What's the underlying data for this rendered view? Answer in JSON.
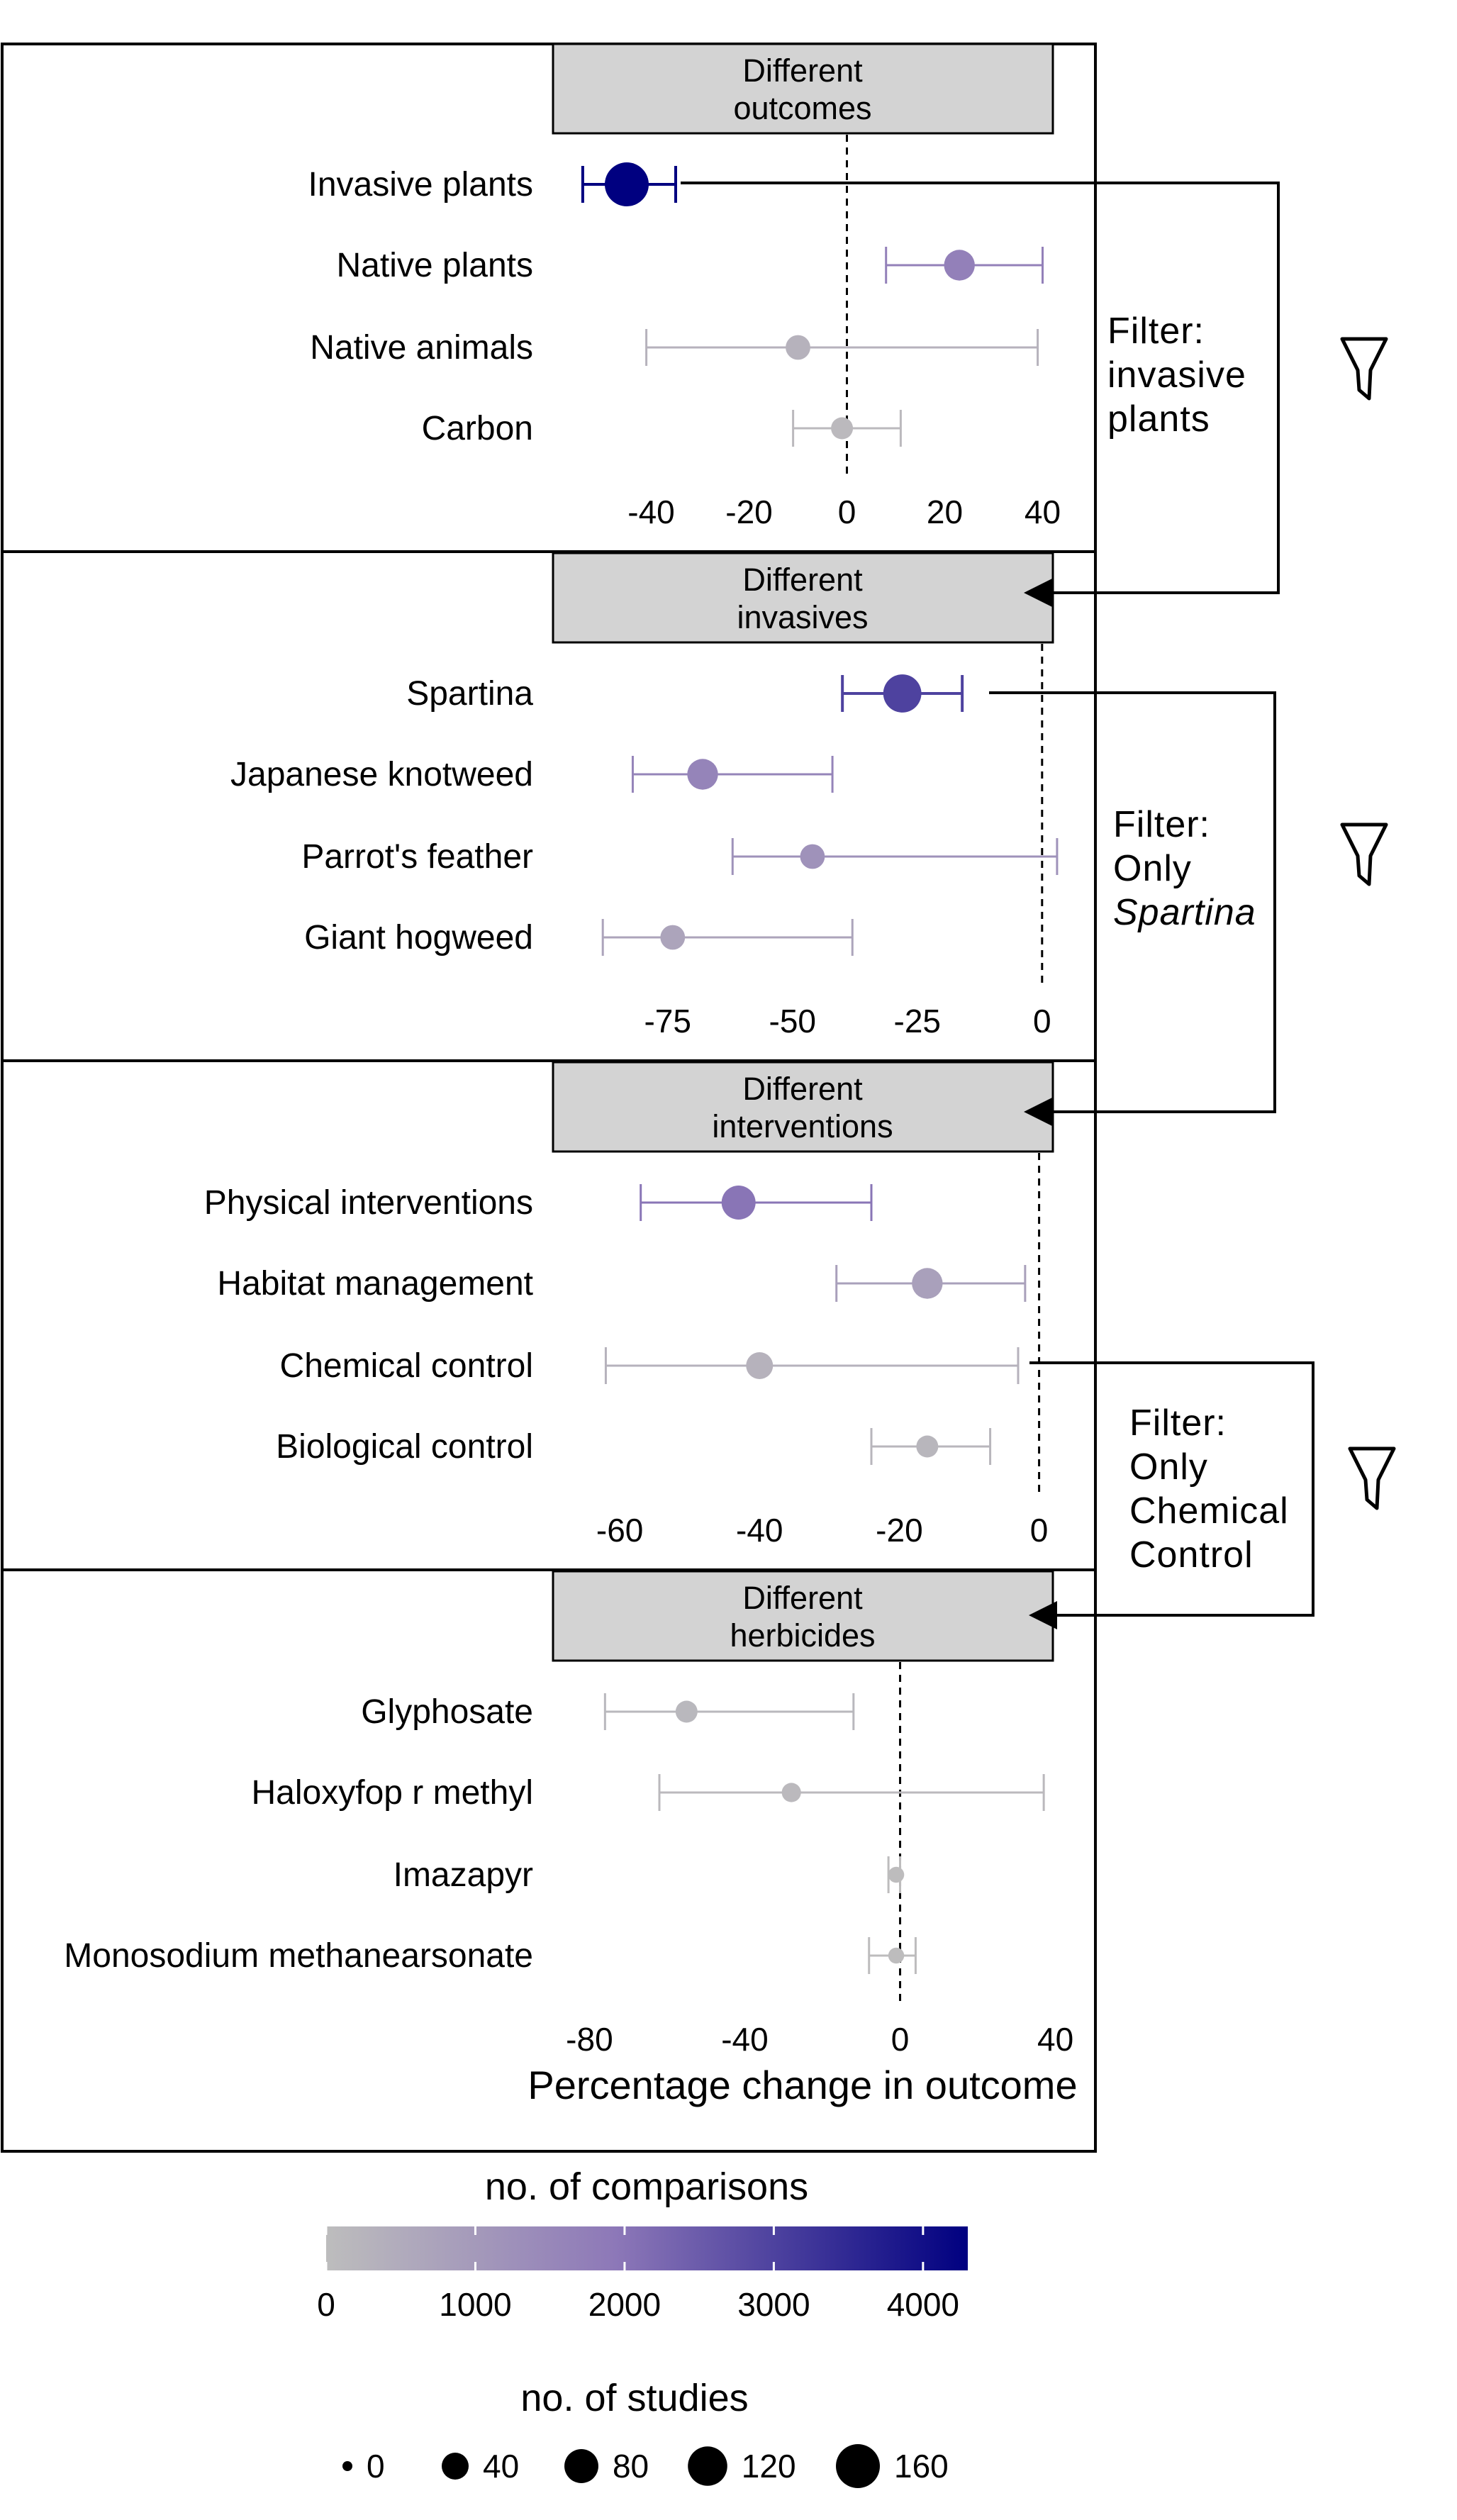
{
  "chart_data": [
    {
      "type": "scatter",
      "strip_title": [
        "Different",
        "outcomes"
      ],
      "categories": [
        "Invasive plants",
        "Native plants",
        "Native animals",
        "Carbon"
      ],
      "x_ticks": [
        "-40",
        "-20",
        "0",
        "20",
        "40"
      ],
      "tick_values": [
        -40,
        -20,
        0,
        20,
        40
      ],
      "xlim": [
        -55,
        45
      ],
      "estimate": [
        -45,
        23,
        -10,
        -1
      ],
      "ci_low": [
        -54,
        8,
        -41,
        -11
      ],
      "ci_high": [
        -35,
        40,
        39,
        11
      ],
      "comparisons": [
        4300,
        1700,
        300,
        100
      ],
      "studies": [
        160,
        60,
        30,
        20
      ]
    },
    {
      "type": "scatter",
      "strip_title": [
        "Different",
        "invasives"
      ],
      "categories": [
        "Spartina",
        "Japanese knotweed",
        "Parrot's feather",
        "Giant hogweed"
      ],
      "x_ticks": [
        "-75",
        "-50",
        "-25",
        "0"
      ],
      "tick_values": [
        -75,
        -50,
        -25,
        0
      ],
      "xlim": [
        -93,
        5
      ],
      "estimate": [
        -28,
        -68,
        -46,
        -74
      ],
      "ci_low": [
        -40,
        -82,
        -62,
        -88
      ],
      "ci_high": [
        -16,
        -42,
        3,
        -38
      ],
      "comparisons": [
        3000,
        1600,
        1200,
        700
      ],
      "studies": [
        110,
        60,
        30,
        30
      ]
    },
    {
      "type": "scatter",
      "strip_title": [
        "Different",
        "interventions"
      ],
      "categories": [
        "Physical interventions",
        "Habitat management",
        "Chemical control",
        "Biological control"
      ],
      "x_ticks": [
        "-60",
        "-40",
        "-20",
        "0"
      ],
      "tick_values": [
        -60,
        -40,
        -20,
        0
      ],
      "xlim": [
        -66,
        4
      ],
      "estimate": [
        -43,
        -16,
        -40,
        -16
      ],
      "ci_low": [
        -57,
        -29,
        -62,
        -24
      ],
      "ci_high": [
        -24,
        -2,
        -3,
        -7
      ],
      "comparisons": [
        2000,
        800,
        300,
        200
      ],
      "studies": [
        80,
        60,
        40,
        20
      ]
    },
    {
      "type": "scatter",
      "strip_title": [
        "Different",
        "herbicides"
      ],
      "categories": [
        "Glyphosate",
        "Haloxyfop r methyl",
        "Imazapyr",
        "Monosodium methanearsonate"
      ],
      "x_ticks": [
        "-80",
        "-40",
        "0",
        "40"
      ],
      "tick_values": [
        -80,
        -40,
        0,
        40
      ],
      "xlim": [
        -83,
        43
      ],
      "estimate": [
        -55,
        -28,
        -1,
        -1
      ],
      "ci_low": [
        -76,
        -62,
        -3,
        -8
      ],
      "ci_high": [
        -12,
        37,
        0,
        4
      ],
      "comparisons": [
        150,
        100,
        20,
        20
      ],
      "studies": [
        20,
        12,
        5,
        5
      ]
    }
  ],
  "x_axis_label": "Percentage change in outcome",
  "filters": [
    {
      "lines": [
        "Filter:",
        "invasive",
        "plants"
      ],
      "icon": "funnel-icon"
    },
    {
      "lines": [
        "Filter:",
        "Only",
        "Spartina"
      ],
      "italic_last": true,
      "icon": "funnel-icon"
    },
    {
      "lines": [
        "Filter:",
        "Only",
        "Chemical",
        "Control"
      ],
      "icon": "funnel-icon"
    }
  ],
  "legend": {
    "color_title": "no. of comparisons",
    "color_ticks": [
      "0",
      "1000",
      "2000",
      "3000",
      "4000"
    ],
    "color_tick_values": [
      0,
      1000,
      2000,
      3000,
      4000
    ],
    "color_max": 4300,
    "color_low": "#bdbdbd",
    "color_high": "#000080",
    "size_title": "no. of studies",
    "size_ticks": [
      "0",
      "40",
      "80",
      "120",
      "160"
    ],
    "size_values": [
      0,
      40,
      80,
      120,
      160
    ]
  }
}
